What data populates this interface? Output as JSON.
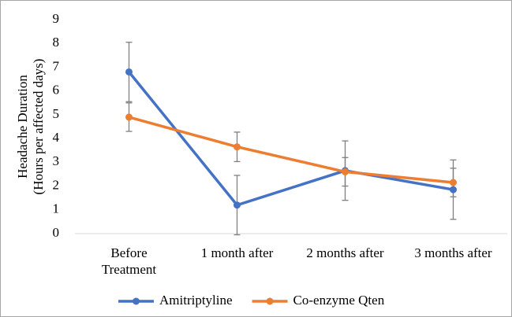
{
  "chart_data": {
    "type": "line",
    "ylabel": [
      "Headache Duration",
      "(Hours per affected days)"
    ],
    "categories": [
      "Before\nTreatment",
      "1 month after",
      "2 months after",
      "3 months after"
    ],
    "series": [
      {
        "name": "Amitriptyline",
        "color": "#4472c4",
        "values": [
          6.8,
          1.2,
          2.65,
          1.85
        ],
        "errors": [
          1.25,
          1.25,
          1.25,
          1.25
        ]
      },
      {
        "name": "Co-enzyme Qten",
        "color": "#ed7d31",
        "values": [
          4.9,
          3.65,
          2.6,
          2.15
        ],
        "errors": [
          0.6,
          0.62,
          0.6,
          0.6
        ]
      }
    ],
    "error_color": "#7f7f7f",
    "ylim": [
      0,
      9
    ],
    "yticks": [
      0,
      1,
      2,
      3,
      4,
      5,
      6,
      7,
      8,
      9
    ],
    "grid": false,
    "legend": "bottom"
  }
}
